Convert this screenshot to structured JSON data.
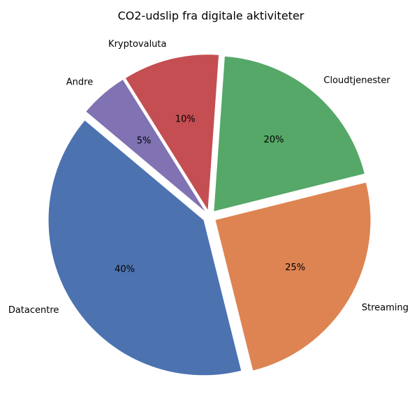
{
  "chart_data": {
    "type": "pie",
    "title": "CO2-udslip fra digitale aktiviteter",
    "categories": [
      "Datacentre",
      "Streaming",
      "Cloudtjenester",
      "Kryptovaluta",
      "Andre"
    ],
    "values": [
      40,
      25,
      20,
      10,
      5
    ],
    "value_labels": [
      "40%",
      "25%",
      "20%",
      "10%",
      "5%"
    ],
    "colors": [
      "#4c72b0",
      "#dd8452",
      "#55a868",
      "#c44e52",
      "#8172b3"
    ],
    "exploded": true,
    "start_angle_deg": 140,
    "direction": "counterclockwise",
    "legend": "none"
  }
}
